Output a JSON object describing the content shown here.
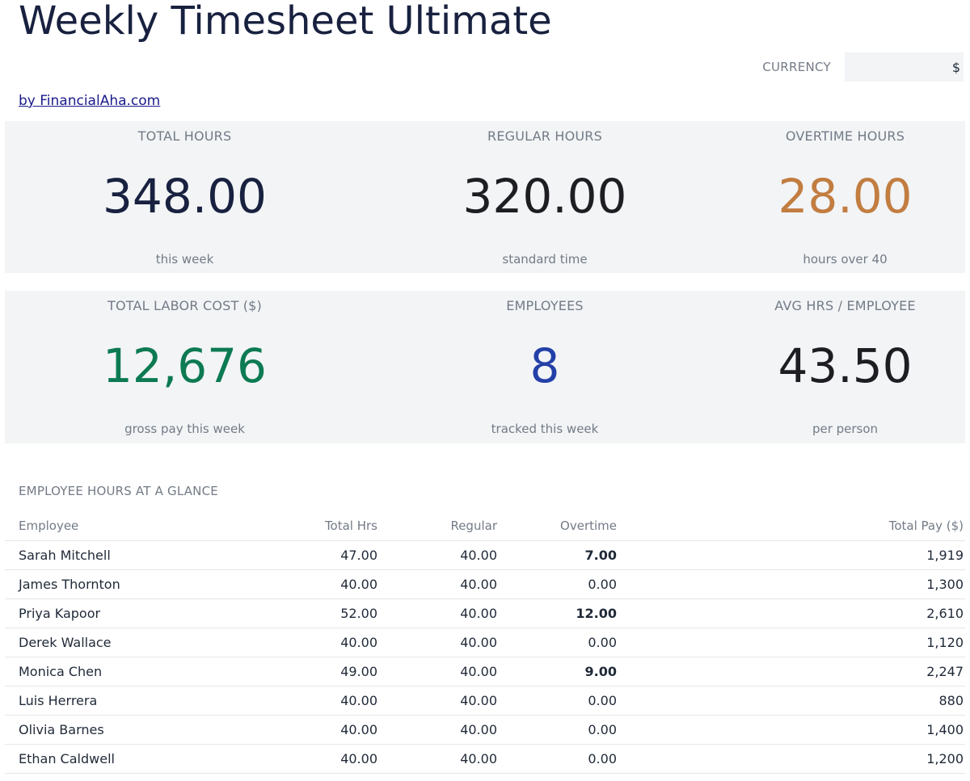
{
  "header": {
    "title": "Weekly Timesheet Ultimate",
    "currency_label": "CURRENCY",
    "currency_value": "$",
    "credit_link": "by FinancialAha.com"
  },
  "kpis": [
    {
      "label": "TOTAL HOURS",
      "value": "348.00",
      "sub": "this week",
      "color": "#18213f"
    },
    {
      "label": "REGULAR HOURS",
      "value": "320.00",
      "sub": "standard time",
      "color": "#1d1d22"
    },
    {
      "label": "OVERTIME HOURS",
      "value": "28.00",
      "sub": "hours over 40",
      "color": "#c27d40"
    },
    {
      "label": "TOTAL LABOR COST ($)",
      "value": "12,676",
      "sub": "gross pay this week",
      "color": "#0c7a52"
    },
    {
      "label": "EMPLOYEES",
      "value": "8",
      "sub": "tracked this week",
      "color": "#2340a8"
    },
    {
      "label": "AVG HRS / EMPLOYEE",
      "value": "43.50",
      "sub": "per person",
      "color": "#1d1d22"
    }
  ],
  "table": {
    "section_title": "EMPLOYEE HOURS AT A GLANCE",
    "columns": [
      "Employee",
      "Total Hrs",
      "Regular",
      "Overtime",
      "Total Pay ($)"
    ],
    "rows": [
      {
        "name": "Sarah Mitchell",
        "total": "47.00",
        "regular": "40.00",
        "overtime": "7.00",
        "pay": "1,919"
      },
      {
        "name": "James Thornton",
        "total": "40.00",
        "regular": "40.00",
        "overtime": "0.00",
        "pay": "1,300"
      },
      {
        "name": "Priya Kapoor",
        "total": "52.00",
        "regular": "40.00",
        "overtime": "12.00",
        "pay": "2,610"
      },
      {
        "name": "Derek Wallace",
        "total": "40.00",
        "regular": "40.00",
        "overtime": "0.00",
        "pay": "1,120"
      },
      {
        "name": "Monica Chen",
        "total": "49.00",
        "regular": "40.00",
        "overtime": "9.00",
        "pay": "2,247"
      },
      {
        "name": "Luis Herrera",
        "total": "40.00",
        "regular": "40.00",
        "overtime": "0.00",
        "pay": "880"
      },
      {
        "name": "Olivia Barnes",
        "total": "40.00",
        "regular": "40.00",
        "overtime": "0.00",
        "pay": "1,400"
      },
      {
        "name": "Ethan Caldwell",
        "total": "40.00",
        "regular": "40.00",
        "overtime": "0.00",
        "pay": "1,200"
      }
    ],
    "overtime_color": "#b4191c"
  }
}
